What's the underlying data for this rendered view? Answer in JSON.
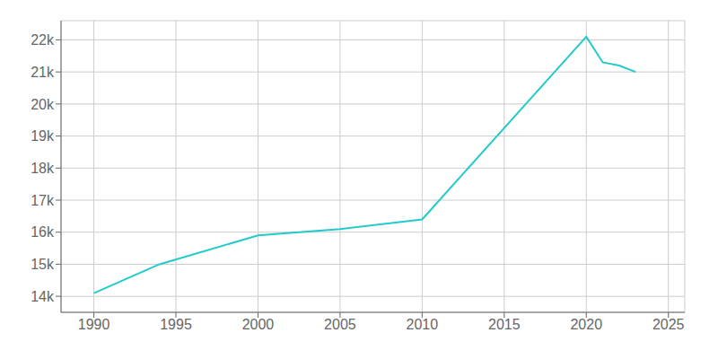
{
  "chart_data": {
    "type": "line",
    "x": [
      1990,
      1994,
      2000,
      2005,
      2010,
      2020,
      2021,
      2022,
      2023
    ],
    "values": [
      14100,
      15000,
      15900,
      16100,
      16400,
      22100,
      21300,
      21200,
      21000
    ],
    "color": "#22CACC",
    "xlim": [
      1988,
      2026
    ],
    "ylim": [
      13500,
      22600
    ],
    "xticks": [
      1990,
      1995,
      2000,
      2005,
      2010,
      2015,
      2020,
      2025
    ],
    "yticks": [
      {
        "value": 14000,
        "label": "14k"
      },
      {
        "value": 15000,
        "label": "15k"
      },
      {
        "value": 16000,
        "label": "16k"
      },
      {
        "value": 17000,
        "label": "17k"
      },
      {
        "value": 18000,
        "label": "18k"
      },
      {
        "value": 19000,
        "label": "19k"
      },
      {
        "value": 20000,
        "label": "20k"
      },
      {
        "value": 21000,
        "label": "21k"
      },
      {
        "value": 22000,
        "label": "22k"
      }
    ],
    "grid": true
  }
}
